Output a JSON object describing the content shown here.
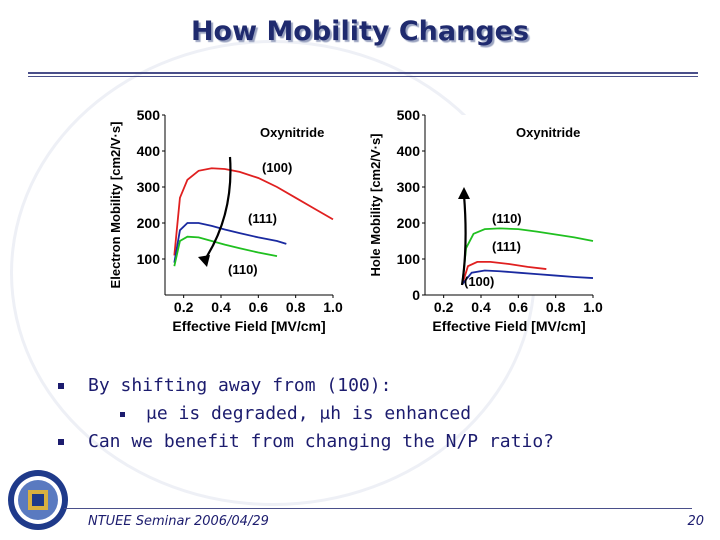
{
  "slide": {
    "title": "How Mobility Changes",
    "footer": "NTUEE Seminar 2006/04/29",
    "page_number": "20"
  },
  "bullets": [
    {
      "text": "By shifting away from (100):",
      "level": 1
    },
    {
      "text": "μe is degraded, μh is enhanced",
      "level": 2
    },
    {
      "text": "Can we benefit from changing the N/P ratio?",
      "level": 1
    }
  ],
  "chart_data": [
    {
      "type": "line",
      "xlabel": "Effective Field [MV/cm]",
      "ylabel": "Electron Mobility [cm2/V·s]",
      "annotation": "Oxynitride",
      "xlim": [
        0.1,
        1.0
      ],
      "ylim": [
        0,
        500
      ],
      "xticks": [
        "0.2",
        "0.4",
        "0.6",
        "0.8",
        "1.0"
      ],
      "yticks": [
        "100",
        "200",
        "300",
        "400",
        "500"
      ],
      "arrow": "down",
      "series": [
        {
          "name": "(100)",
          "color": "#e02020",
          "x": [
            0.15,
            0.18,
            0.22,
            0.28,
            0.35,
            0.42,
            0.5,
            0.6,
            0.7,
            0.8,
            0.9,
            1.0
          ],
          "y": [
            110,
            270,
            320,
            345,
            352,
            350,
            342,
            325,
            300,
            270,
            240,
            210
          ]
        },
        {
          "name": "(111)",
          "color": "#1a2aa0",
          "x": [
            0.15,
            0.18,
            0.22,
            0.28,
            0.35,
            0.42,
            0.5,
            0.6,
            0.7,
            0.75
          ],
          "y": [
            90,
            180,
            200,
            200,
            192,
            182,
            172,
            160,
            150,
            142
          ]
        },
        {
          "name": "(110)",
          "color": "#20c020",
          "x": [
            0.15,
            0.18,
            0.22,
            0.28,
            0.35,
            0.42,
            0.5,
            0.6,
            0.7
          ],
          "y": [
            80,
            150,
            162,
            160,
            150,
            140,
            130,
            118,
            108
          ]
        }
      ]
    },
    {
      "type": "line",
      "xlabel": "Effective Field [MV/cm]",
      "ylabel": "Hole Mobility [cm2/V·s]",
      "annotation": "Oxynitride",
      "xlim": [
        0.1,
        1.0
      ],
      "ylim": [
        0,
        500
      ],
      "xticks": [
        "0.2",
        "0.4",
        "0.6",
        "0.8",
        "1.0"
      ],
      "yticks": [
        "0",
        "100",
        "200",
        "300",
        "400",
        "500"
      ],
      "arrow": "up",
      "series": [
        {
          "name": "(110)",
          "color": "#20c020",
          "x": [
            0.3,
            0.32,
            0.36,
            0.42,
            0.5,
            0.6,
            0.7,
            0.8,
            0.9,
            1.0
          ],
          "y": [
            30,
            130,
            170,
            183,
            185,
            183,
            176,
            168,
            160,
            150
          ]
        },
        {
          "name": "(111)",
          "color": "#e02020",
          "x": [
            0.3,
            0.33,
            0.38,
            0.45,
            0.55,
            0.65,
            0.75
          ],
          "y": [
            30,
            80,
            92,
            92,
            86,
            78,
            72
          ]
        },
        {
          "name": "(100)",
          "color": "#1a2aa0",
          "x": [
            0.3,
            0.35,
            0.42,
            0.5,
            0.6,
            0.7,
            0.8,
            0.9,
            1.0
          ],
          "y": [
            30,
            62,
            68,
            66,
            62,
            58,
            54,
            50,
            47
          ]
        }
      ]
    }
  ]
}
